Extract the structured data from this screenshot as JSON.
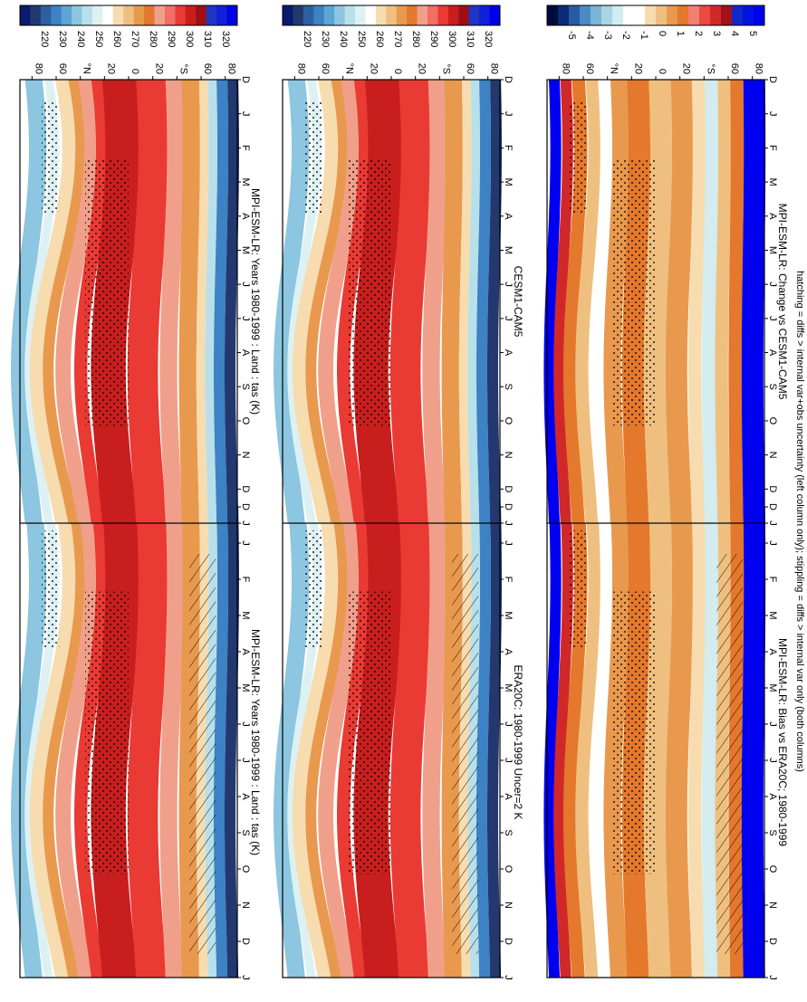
{
  "figure": {
    "footnote": "hatching = diffs > internal var+obs uncertainty (left column only); stippling = diffs > internal var only (both columns)"
  },
  "chart_data": [
    {
      "type": "heatmap",
      "title": "MPI-ESM-LR: Years 1980-1999 : Land : tas (K)",
      "month_ticks": [
        "D",
        "J",
        "F",
        "M",
        "A",
        "M",
        "J",
        "J",
        "A",
        "S",
        "O",
        "N",
        "D",
        "J"
      ],
      "lat_ticks": [
        "80",
        "60",
        "°N",
        "20",
        "0",
        "20",
        "°S",
        "60",
        "80"
      ],
      "colorbar": {
        "ticks": [
          "320",
          "310",
          "300",
          "290",
          "280",
          "270",
          "260",
          "250",
          "240",
          "230",
          "220"
        ]
      },
      "overlays": {
        "stippling": true,
        "hatching": true
      }
    },
    {
      "type": "heatmap",
      "title": "ERA20C: 1980-1999 Uncer=2 K",
      "month_ticks": [
        "D",
        "J",
        "F",
        "M",
        "A",
        "M",
        "J",
        "J",
        "A",
        "S",
        "O",
        "N",
        "D",
        "J"
      ],
      "lat_ticks": [
        "80",
        "60",
        "°N",
        "20",
        "0",
        "20",
        "°S",
        "60",
        "80"
      ],
      "colorbar": {
        "ticks": [
          "320",
          "310",
          "300",
          "290",
          "280",
          "270",
          "260",
          "250",
          "240",
          "230",
          "220"
        ]
      },
      "overlays": {
        "stippling": true,
        "hatching": true
      }
    },
    {
      "type": "heatmap",
      "title": "MPI-ESM-LR: Bias vs ERA20C; 1980-1999",
      "month_ticks": [
        "D",
        "J",
        "F",
        "M",
        "A",
        "M",
        "J",
        "J",
        "A",
        "S",
        "O",
        "N",
        "D",
        "J"
      ],
      "lat_ticks": [
        "80",
        "60",
        "°N",
        "20",
        "0",
        "20",
        "°S",
        "60",
        "80"
      ],
      "colorbar": {
        "ticks": [
          "5",
          "4",
          "3",
          "2",
          "1",
          "0",
          "-1",
          "-2",
          "-3",
          "-4",
          "-5"
        ]
      },
      "overlays": {
        "stippling": true,
        "hatching": true
      }
    },
    {
      "type": "heatmap",
      "title": "MPI-ESM-LR: Years 1980-1999 : Land : tas (K)",
      "month_ticks": [
        "D",
        "J",
        "F",
        "M",
        "A",
        "M",
        "J",
        "J",
        "A",
        "S",
        "O",
        "N",
        "D",
        "J"
      ],
      "lat_ticks": [
        "80",
        "60",
        "°N",
        "20",
        "0",
        "20",
        "°S",
        "60",
        "80"
      ],
      "colorbar": {
        "ticks": [
          "320",
          "310",
          "300",
          "290",
          "280",
          "270",
          "260",
          "250",
          "240",
          "230",
          "220"
        ]
      },
      "overlays": {
        "stippling": true,
        "hatching": false
      }
    },
    {
      "type": "heatmap",
      "title": "CESM1-CAM5",
      "month_ticks": [
        "D",
        "J",
        "F",
        "M",
        "A",
        "M",
        "J",
        "J",
        "A",
        "S",
        "O",
        "N",
        "D",
        "J"
      ],
      "lat_ticks": [
        "80",
        "60",
        "°N",
        "20",
        "0",
        "20",
        "°S",
        "60",
        "80"
      ],
      "colorbar": {
        "ticks": [
          "320",
          "310",
          "300",
          "290",
          "280",
          "270",
          "260",
          "250",
          "240",
          "230",
          "220"
        ]
      },
      "overlays": {
        "stippling": true,
        "hatching": false
      }
    },
    {
      "type": "heatmap",
      "title": "MPI-ESM-LR: Change vs CESM1-CAM5",
      "month_ticks": [
        "D",
        "J",
        "F",
        "M",
        "A",
        "M",
        "J",
        "J",
        "A",
        "S",
        "O",
        "N",
        "D",
        "J"
      ],
      "lat_ticks": [
        "80",
        "60",
        "°N",
        "20",
        "0",
        "20",
        "°S",
        "60",
        "80"
      ],
      "colorbar": {
        "ticks": [
          "5",
          "4",
          "3",
          "2",
          "1",
          "0",
          "-1",
          "-2",
          "-3",
          "-4",
          "-5"
        ]
      },
      "overlays": {
        "stippling": true,
        "hatching": false
      }
    }
  ],
  "palettes": {
    "temperature": [
      "#0a1a6e",
      "#23386e",
      "#2d5fa0",
      "#3c82c4",
      "#5da5d4",
      "#8cc6e0",
      "#b8e0ea",
      "#ddf1f3",
      "#ffffff",
      "#f6dcaf",
      "#efbf80",
      "#e8994e",
      "#e4782c",
      "#f0a08a",
      "#f06e64",
      "#ea3a34",
      "#c81e1e",
      "#9e0f14",
      "#2034c8",
      "#1020d8",
      "#0000e8"
    ],
    "difference": [
      "#000a3c",
      "#0a2c78",
      "#2a5aa4",
      "#4c8ac4",
      "#7ab4d8",
      "#a8d4e4",
      "#d2ecef",
      "#ffffff",
      "#ffffff",
      "#f6dcaf",
      "#efbf80",
      "#e8994e",
      "#e4782c",
      "#f08070",
      "#ea4a40",
      "#d02828",
      "#a01218",
      "#1428c8",
      "#0014e0",
      "#0000f0"
    ]
  }
}
